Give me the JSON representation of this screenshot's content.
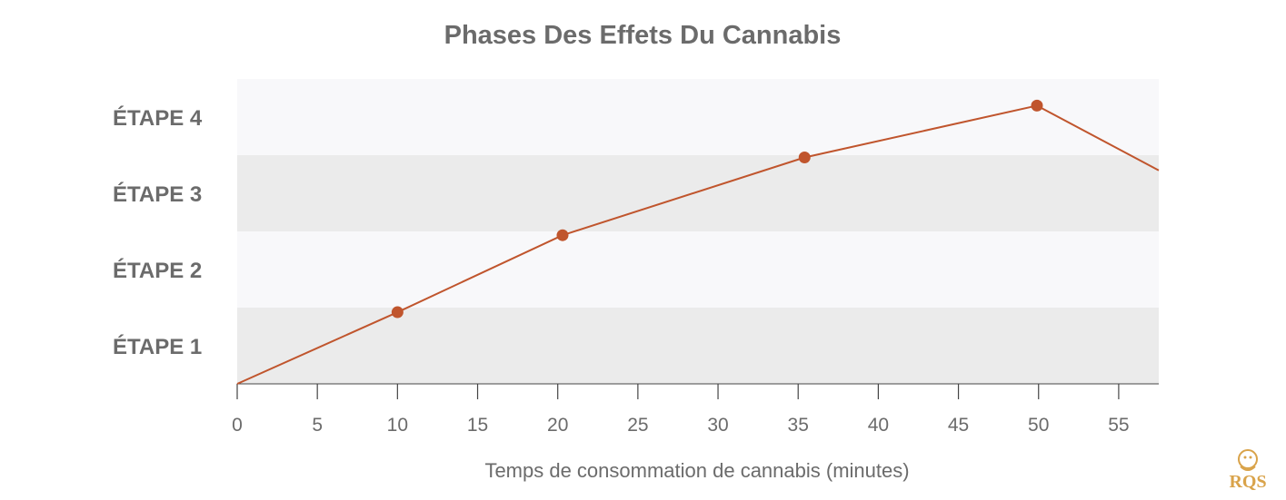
{
  "chart_data": {
    "type": "line",
    "title": "Phases Des Effets Du Cannabis",
    "xlabel": "Temps de consommation de cannabis (minutes)",
    "ylabel": "",
    "xlim": [
      0,
      57.5
    ],
    "ylim": [
      0,
      4
    ],
    "x_ticks": [
      0,
      5,
      10,
      15,
      20,
      25,
      30,
      35,
      40,
      45,
      50,
      55
    ],
    "y_categories": [
      "ÉTAPE 1",
      "ÉTAPE 2",
      "ÉTAPE 3",
      "ÉTAPE 4"
    ],
    "grid": false,
    "legend": null,
    "series": [
      {
        "x": [
          0,
          10,
          20.3,
          35.4,
          49.9,
          57.5
        ],
        "y": [
          0,
          0.94,
          1.95,
          2.97,
          3.65,
          2.8
        ],
        "markers": [
          false,
          true,
          true,
          true,
          true,
          false
        ]
      }
    ],
    "colors": {
      "line": "#c0552d",
      "band_light": "#f8f8fa",
      "band_dark": "#ebebeb",
      "text": "#6b6b6b",
      "axis": "#444444",
      "logo": "#d9a34a"
    }
  },
  "logo": {
    "text": "RQS"
  }
}
